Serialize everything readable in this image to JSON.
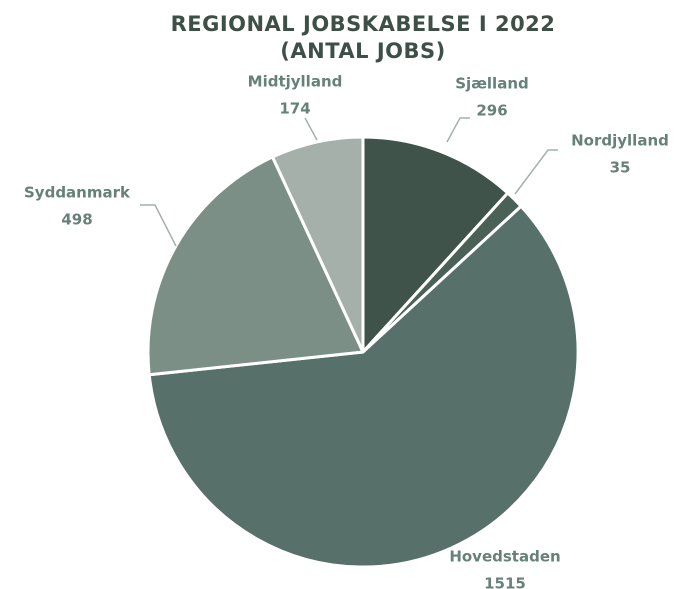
{
  "chart_data": {
    "type": "pie",
    "title": [
      "REGIONAL JOBSKABELSE I 2022",
      "(ANTAL JOBS)"
    ],
    "categories": [
      "Sjælland",
      "Nordjylland",
      "Hovedstaden",
      "Syddanmark",
      "Midtjylland"
    ],
    "values": [
      296,
      35,
      1515,
      498,
      174
    ],
    "colors": [
      "#40534b",
      "#4a6158",
      "#57716a",
      "#7b8f87",
      "#a6b0ab"
    ]
  }
}
